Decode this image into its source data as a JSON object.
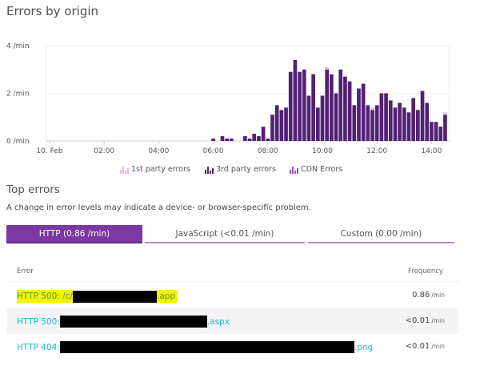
{
  "title": "Errors by origin",
  "chart_data": {
    "type": "bar",
    "stacked": true,
    "x_unit": "time of day (10. Feb)",
    "x_ticks": [
      "10. Feb",
      "02:00",
      "04:00",
      "06:00",
      "08:00",
      "10:00",
      "12:00",
      "14:00"
    ],
    "y_ticks": [
      "0 /min",
      "2 /min",
      "4 /min"
    ],
    "ylim": [
      0,
      4
    ],
    "grid": true,
    "legend_position": "bottom",
    "x": [
      "06:00",
      "06:20",
      "06:30",
      "06:40",
      "07:10",
      "07:20",
      "07:30",
      "07:40",
      "07:50",
      "08:00",
      "08:10",
      "08:20",
      "08:30",
      "08:40",
      "08:50",
      "09:00",
      "09:10",
      "09:20",
      "09:30",
      "09:40",
      "09:50",
      "10:00",
      "10:10",
      "10:20",
      "10:30",
      "10:40",
      "10:50",
      "11:00",
      "11:10",
      "11:20",
      "11:30",
      "11:40",
      "11:50",
      "12:00",
      "12:10",
      "12:20",
      "12:30",
      "12:40",
      "12:50",
      "13:00",
      "13:10",
      "13:20",
      "13:30",
      "13:40",
      "13:50",
      "14:00",
      "14:10",
      "14:20",
      "14:30"
    ],
    "series": [
      {
        "name": "3rd party errors",
        "color": "#522173",
        "values": [
          0.1,
          0.2,
          0.1,
          0.1,
          0.2,
          0.1,
          0.3,
          0.2,
          0.6,
          0.1,
          1.1,
          1.5,
          1.3,
          1.4,
          2.9,
          3.4,
          2.9,
          3.0,
          1.9,
          2.8,
          1.4,
          1.9,
          3.0,
          2.8,
          2.0,
          3.0,
          2.7,
          2.5,
          1.5,
          2.2,
          2.4,
          1.5,
          1.3,
          1.5,
          2.0,
          2.0,
          1.7,
          1.4,
          1.6,
          1.4,
          1.2,
          1.8,
          1.3,
          2.1,
          1.6,
          0.8,
          0.8,
          0.6,
          1.1
        ]
      },
      {
        "name": "1st party errors",
        "color": "#e2b8f0",
        "values": [
          0,
          0,
          0,
          0,
          0,
          0,
          0,
          0,
          0,
          0,
          0,
          0,
          0,
          0,
          0,
          0,
          0,
          0,
          0,
          0,
          0,
          0,
          0.1,
          0,
          0,
          0,
          0,
          0,
          0,
          0,
          0,
          0,
          0.1,
          0,
          0,
          0,
          0,
          0,
          0,
          0,
          0,
          0,
          0,
          0,
          0,
          0,
          0,
          0,
          0.1
        ]
      },
      {
        "name": "CDN Errors",
        "color": "#9b4dca",
        "values": [
          0,
          0,
          0,
          0,
          0,
          0,
          0,
          0,
          0,
          0,
          0,
          0,
          0,
          0,
          0,
          0,
          0,
          0,
          0,
          0,
          0,
          0,
          0,
          0,
          0,
          0,
          0,
          0,
          0,
          0,
          0,
          0,
          0,
          0,
          0,
          0,
          0,
          0,
          0,
          0,
          0,
          0,
          0,
          0,
          0,
          0,
          0,
          0,
          0
        ]
      }
    ]
  },
  "legend": [
    {
      "label": "1st party errors",
      "color": "#e2b8f0"
    },
    {
      "label": "3rd party errors",
      "color": "#522173"
    },
    {
      "label": "CDN Errors",
      "color": "#9b4dca"
    }
  ],
  "top_errors": {
    "title": "Top errors",
    "subtitle": "A change in error levels may indicate a device- or browser-specific problem.",
    "tabs": [
      {
        "label": "HTTP (0.86 /min)",
        "active": true
      },
      {
        "label": "JavaScript (<0.01 /min)",
        "active": false
      },
      {
        "label": "Custom (0.00 /min)",
        "active": false
      }
    ],
    "columns": {
      "error": "Error",
      "frequency": "Frequency"
    },
    "rows": [
      {
        "prefix": "HTTP 500: /c/",
        "suffix": ".app",
        "value": "0.86",
        "unit": "/min",
        "highlighted": true
      },
      {
        "prefix": "HTTP 500: ",
        "suffix": ".aspx",
        "value": "<0.01",
        "unit": "/min",
        "highlighted": false
      },
      {
        "prefix": "HTTP 404: ",
        "suffix": ".png",
        "value": "<0.01",
        "unit": "/min",
        "highlighted": false
      }
    ]
  },
  "colors": {
    "accent": "#7b37a2",
    "link": "#1ab6cf",
    "highlight": "#f2f500"
  }
}
